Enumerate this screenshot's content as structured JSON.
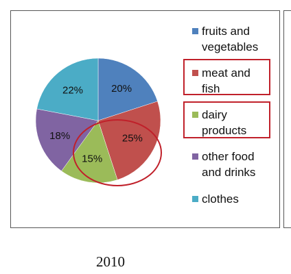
{
  "chart_data": {
    "type": "pie",
    "title": "",
    "caption": "2010",
    "slices": [
      {
        "label": "fruits and\nvegetables",
        "value": 20,
        "display": "20%",
        "color": "#4F81BD"
      },
      {
        "label": "meat and\nfish",
        "value": 25,
        "display": "25%",
        "color": "#C0504D"
      },
      {
        "label": "dairy\nproducts",
        "value": 15,
        "display": "15%",
        "color": "#9BBB59"
      },
      {
        "label": "other food\nand drinks",
        "value": 18,
        "display": "18%",
        "color": "#8064A2"
      },
      {
        "label": "clothes",
        "value": 22,
        "display": "22%",
        "color": "#4BACC6"
      }
    ],
    "legend_position": "right",
    "highlighted_legend_entries": [
      "meat and\nfish",
      "dairy\nproducts"
    ],
    "annotation_color": "#C0202A"
  }
}
